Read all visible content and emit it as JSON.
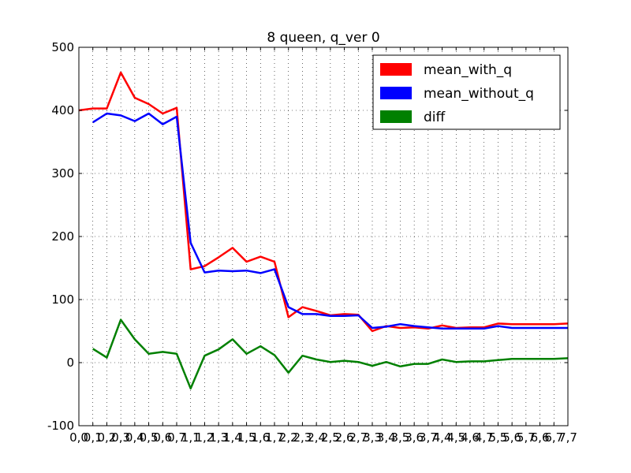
{
  "chart_data": {
    "type": "line",
    "title": "8 queen, q_ver 0",
    "xlabel": "",
    "ylabel": "",
    "ylim": [
      -100,
      500
    ],
    "yticks": [
      -100,
      0,
      100,
      200,
      300,
      400,
      500
    ],
    "grid": true,
    "legend_position": "top-right",
    "categories": [
      "0,0",
      "0,1",
      "0,2",
      "0,3",
      "0,4",
      "0,5",
      "0,6",
      "0,7",
      "1,1",
      "1,2",
      "1,3",
      "1,4",
      "1,5",
      "1,6",
      "1,7",
      "2,2",
      "2,3",
      "2,4",
      "2,5",
      "2,6",
      "2,7",
      "3,3",
      "3,4",
      "3,5",
      "3,6",
      "3,7",
      "4,4",
      "4,5",
      "4,6",
      "4,7",
      "5,5",
      "5,6",
      "5,7",
      "6,6",
      "6,7",
      "7,7"
    ],
    "series": [
      {
        "name": "mean_with_q",
        "color": "#ff0000",
        "values": [
          400,
          403,
          403,
          460,
          420,
          410,
          395,
          404,
          148,
          153,
          167,
          182,
          160,
          168,
          160,
          72,
          88,
          82,
          75,
          77,
          76,
          50,
          58,
          55,
          56,
          54,
          59,
          55,
          56,
          56,
          62,
          61,
          61,
          61,
          61,
          62
        ]
      },
      {
        "name": "mean_without_q",
        "color": "#0000ff",
        "values": [
          null,
          381,
          395,
          392,
          383,
          395,
          378,
          390,
          190,
          143,
          146,
          145,
          146,
          142,
          148,
          88,
          77,
          77,
          74,
          74,
          75,
          55,
          57,
          61,
          58,
          56,
          54,
          54,
          54,
          54,
          58,
          55,
          55,
          55,
          55,
          55
        ]
      },
      {
        "name": "diff",
        "color": "#008000",
        "values": [
          null,
          22,
          8,
          68,
          37,
          14,
          17,
          14,
          -41,
          11,
          21,
          37,
          14,
          26,
          12,
          -16,
          11,
          5,
          1,
          3,
          1,
          -5,
          1,
          -6,
          -2,
          -2,
          5,
          1,
          2,
          2,
          4,
          6,
          6,
          6,
          6,
          7
        ]
      }
    ]
  }
}
